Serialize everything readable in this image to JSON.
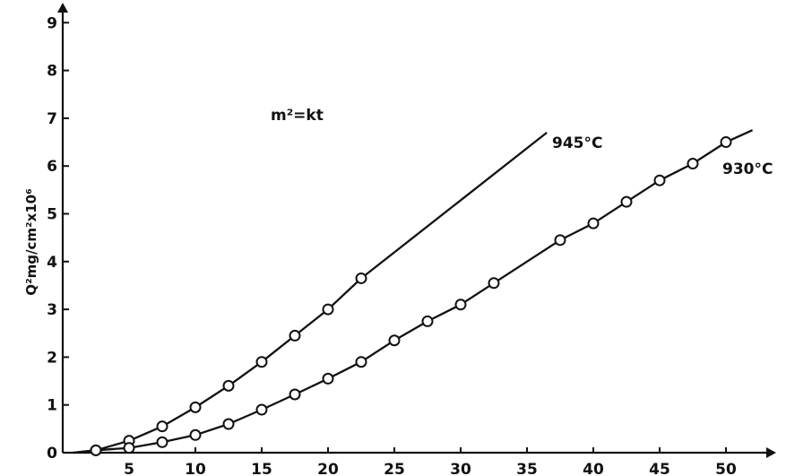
{
  "chart_data": {
    "type": "line",
    "title": "",
    "xlabel": "",
    "ylabel": "Q²mg/cm²x10⁶",
    "xlim": [
      0,
      52
    ],
    "ylim": [
      0,
      9
    ],
    "x_ticks": [
      "5",
      "10",
      "15",
      "20",
      "25",
      "30",
      "35",
      "40",
      "45",
      "50"
    ],
    "y_ticks": [
      "0",
      "1",
      "2",
      "3",
      "4",
      "5",
      "6",
      "7",
      "8",
      "9"
    ],
    "grid": false,
    "annotation": "m²=kt",
    "series": [
      {
        "name": "945°C",
        "x": [
          2.5,
          5,
          7.5,
          10,
          12.5,
          15,
          17.5,
          20,
          22.5
        ],
        "y": [
          0.05,
          0.25,
          0.55,
          0.95,
          1.4,
          1.9,
          2.45,
          3.0,
          3.65
        ],
        "line_end": [
          36.5,
          6.7
        ]
      },
      {
        "name": "930°C",
        "x": [
          2.5,
          5,
          7.5,
          10,
          12.5,
          15,
          17.5,
          20,
          22.5,
          25,
          27.5,
          30,
          32.5,
          37.5,
          40,
          42.5,
          45,
          47.5,
          50
        ],
        "y": [
          0.05,
          0.1,
          0.22,
          0.37,
          0.6,
          0.9,
          1.22,
          1.55,
          1.9,
          2.35,
          2.75,
          3.1,
          3.55,
          4.45,
          4.8,
          5.25,
          5.7,
          6.05,
          6.5
        ],
        "line_end": [
          52,
          6.75
        ]
      }
    ]
  }
}
